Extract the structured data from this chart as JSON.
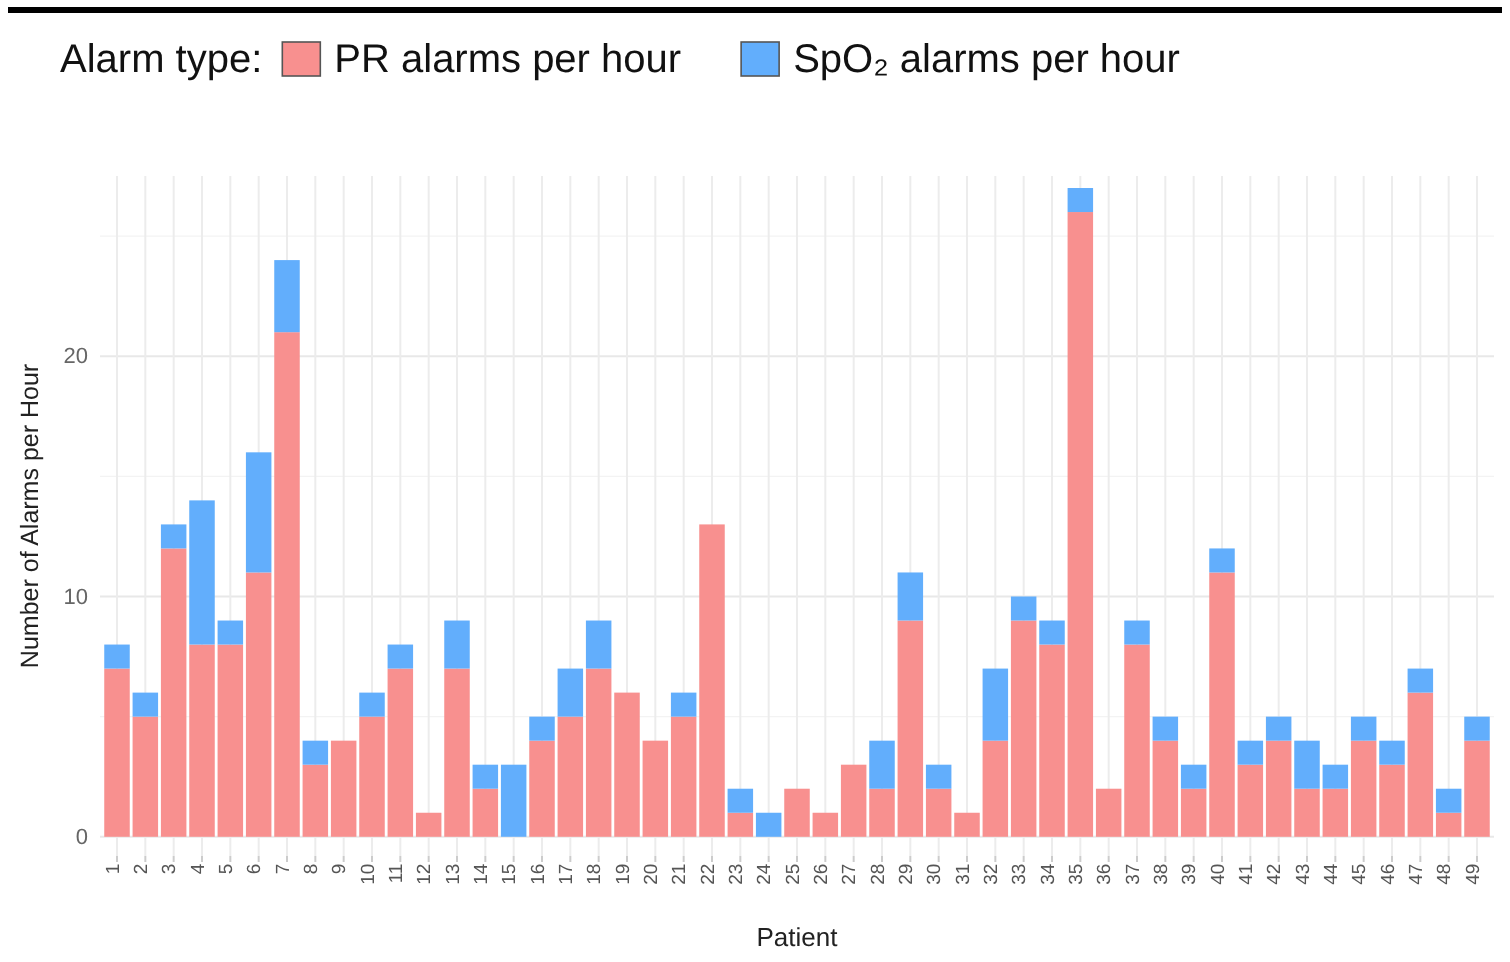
{
  "chart_data": {
    "type": "bar",
    "stacked": true,
    "xlabel": "Patient",
    "ylabel": "Number of Alarms per Hour",
    "legend_title": "Alarm type:",
    "legend": "top",
    "grid": true,
    "categories": [
      "1",
      "2",
      "3",
      "4",
      "5",
      "6",
      "7",
      "8",
      "9",
      "10",
      "11",
      "12",
      "13",
      "14",
      "15",
      "16",
      "17",
      "18",
      "19",
      "20",
      "21",
      "22",
      "23",
      "24",
      "25",
      "26",
      "27",
      "28",
      "29",
      "30",
      "31",
      "32",
      "33",
      "34",
      "35",
      "36",
      "37",
      "38",
      "39",
      "40",
      "41",
      "42",
      "43",
      "44",
      "45",
      "46",
      "47",
      "48",
      "49"
    ],
    "ylim": [
      -0.8,
      27.5
    ],
    "yticks": [
      0,
      {
        "value": 5,
        "label": null
      },
      10,
      {
        "value": 15,
        "label": null
      },
      20,
      {
        "value": 25,
        "label": null
      }
    ],
    "series": [
      {
        "name": "PR alarms per hour",
        "color": "#f8908f",
        "values": [
          7,
          5,
          12,
          8,
          8,
          11,
          21,
          3,
          4,
          5,
          7,
          1,
          7,
          2,
          0,
          4,
          5,
          7,
          6,
          4,
          5,
          13,
          1,
          0,
          2,
          1,
          3,
          2,
          9,
          2,
          1,
          4,
          9,
          8,
          26,
          2,
          8,
          4,
          2,
          11,
          3,
          4,
          2,
          2,
          4,
          3,
          6,
          1,
          4
        ]
      },
      {
        "name": "SpO₂ alarms per hour",
        "color": "#62aefc",
        "values": [
          1,
          1,
          1,
          6,
          1,
          5,
          3,
          1,
          0,
          1,
          1,
          0,
          2,
          1,
          3,
          1,
          2,
          2,
          0,
          0,
          1,
          0,
          1,
          1,
          0,
          0,
          0,
          2,
          2,
          1,
          0,
          3,
          1,
          1,
          1,
          0,
          1,
          1,
          1,
          1,
          1,
          1,
          2,
          1,
          1,
          1,
          1,
          1,
          1
        ]
      }
    ]
  }
}
